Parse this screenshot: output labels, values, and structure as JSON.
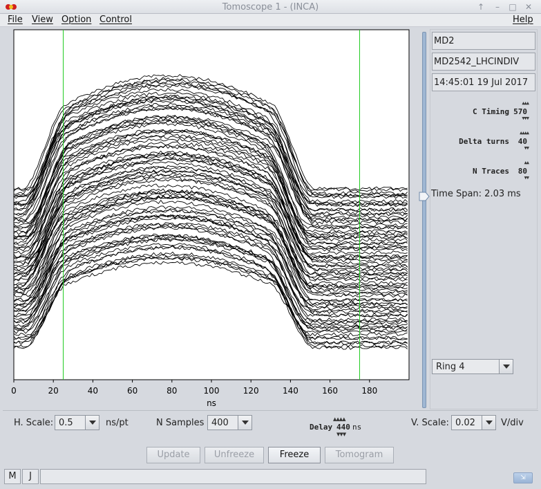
{
  "window": {
    "title": "Tomoscope 1 - (INCA)",
    "controls": [
      "↑",
      "–",
      "□",
      "✕"
    ]
  },
  "menu": {
    "file": "File",
    "view": "View",
    "option": "Option",
    "control": "Control",
    "help": "Help"
  },
  "plot": {
    "xlabel": "ns",
    "xticks": [
      "0",
      "20",
      "40",
      "60",
      "80",
      "100",
      "120",
      "140",
      "160",
      "180"
    ],
    "xmin": 0,
    "xmax": 200,
    "cursor_left_ns": 25,
    "cursor_right_ns": 175,
    "n_traces": 80
  },
  "right_panel": {
    "machine": "MD2",
    "user": "MD2542_LHCINDIV",
    "timestamp": "14:45:01 19 Jul 2017",
    "c_timing_label": "C Timing",
    "c_timing_value": "570",
    "delta_turns_label": "Delta turns",
    "delta_turns_value": "40",
    "n_traces_label": "N Traces",
    "n_traces_value": "80",
    "time_span": "Time Span: 2.03 ms",
    "ring": "Ring 4"
  },
  "controls": {
    "h_scale_label": "H. Scale:",
    "h_scale_value": "0.5",
    "h_scale_unit": "ns/pt",
    "n_samples_label": "N Samples",
    "n_samples_value": "400",
    "delay_label": "Delay",
    "delay_value": "440",
    "delay_unit": "ns",
    "v_scale_label": "V. Scale:",
    "v_scale_value": "0.02",
    "v_scale_unit": "V/div"
  },
  "buttons": {
    "update": "Update",
    "unfreeze": "Unfreeze",
    "freeze": "Freeze",
    "tomogram": "Tomogram"
  },
  "status": {
    "m": "M",
    "j": "J"
  },
  "colors": {
    "cursor": "#22cc22",
    "trace": "#000000"
  }
}
